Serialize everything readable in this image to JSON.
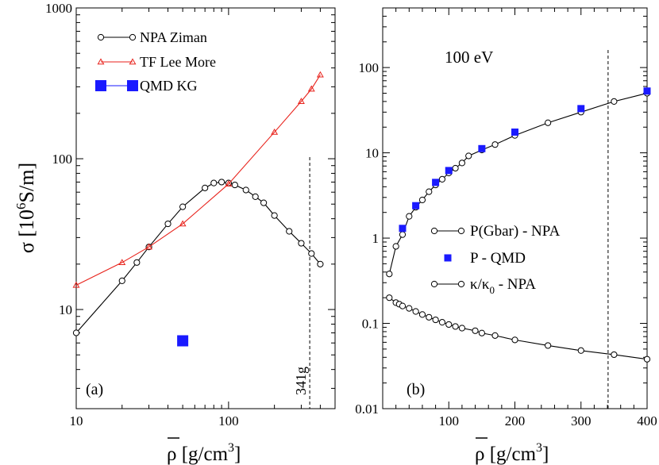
{
  "colors": {
    "npa": "#000000",
    "tf": "#e8221b",
    "qmd": "#1a1aff"
  },
  "chart_data": [
    {
      "type": "line",
      "panel_label": "(a)",
      "xscale": "log",
      "yscale": "log",
      "xlim": [
        10,
        500
      ],
      "ylim": [
        2.2,
        1000
      ],
      "x_ticks": [
        "10",
        "100"
      ],
      "y_ticks": [
        "10",
        "100",
        "1000"
      ],
      "ylabel": "σ [10⁶S/m]",
      "ylabel_base": "σ [10",
      "ylabel_sup": "6",
      "ylabel_tail": "S/m]",
      "xlabel_base": "ρ [g/cm",
      "xlabel_sup": "3",
      "xlabel_tail": "]",
      "xlabel": "ρ̄ [g/cm³]",
      "legend_position": "top-left",
      "series": [
        {
          "name": "NPA Ziman",
          "marker": "circle",
          "color": "#000000",
          "x": [
            10,
            20,
            25,
            30,
            40,
            50,
            70,
            80,
            90,
            100,
            110,
            130,
            150,
            170,
            200,
            250,
            300,
            350,
            400
          ],
          "y": [
            7,
            15.5,
            20.5,
            26,
            37,
            48,
            64,
            69,
            70,
            69,
            67,
            62,
            56,
            51,
            42,
            33,
            27.5,
            23.5,
            20
          ]
        },
        {
          "name": "TF  Lee More",
          "marker": "triangle",
          "color": "#e8221b",
          "x": [
            10,
            20,
            30,
            50,
            100,
            200,
            300,
            350,
            400
          ],
          "y": [
            14.5,
            20.5,
            26,
            37,
            68,
            150,
            240,
            290,
            360
          ]
        },
        {
          "name": "QMD KG",
          "marker": "square",
          "color": "#1a1aff",
          "x": [
            50
          ],
          "y": [
            6.2
          ]
        }
      ],
      "annotations": [
        {
          "text": "341g",
          "x": 341,
          "style": "dashed-vertical-line"
        }
      ]
    },
    {
      "type": "line",
      "panel_label": "(b)",
      "title": "100 eV",
      "xscale": "linear",
      "yscale": "log",
      "xlim": [
        0,
        400
      ],
      "ylim": [
        0.01,
        500
      ],
      "x_ticks": [
        "100",
        "200",
        "300",
        "400"
      ],
      "y_ticks": [
        "0.01",
        "0.1",
        "1",
        "10",
        "100"
      ],
      "xlabel_base": "ρ [g/cm",
      "xlabel_sup": "3",
      "xlabel_tail": "]",
      "xlabel": "ρ̄ [g/cm³]",
      "legend_position": "center-right",
      "series": [
        {
          "name": "P(Gbar) - NPA",
          "marker": "circle",
          "color": "#000000",
          "x": [
            10,
            20,
            30,
            40,
            50,
            60,
            70,
            80,
            90,
            100,
            110,
            120,
            130,
            150,
            170,
            200,
            250,
            300,
            350,
            400
          ],
          "y": [
            0.38,
            0.8,
            1.1,
            1.8,
            2.3,
            2.8,
            3.5,
            4.2,
            4.9,
            5.8,
            6.6,
            7.6,
            9.2,
            10.8,
            12.5,
            16,
            22.5,
            30,
            40,
            50
          ]
        },
        {
          "name": "P - QMD",
          "marker": "square",
          "color": "#1a1aff",
          "x": [
            30,
            50,
            80,
            100,
            150,
            200,
            300,
            400
          ],
          "y": [
            1.3,
            2.4,
            4.5,
            6.2,
            11.2,
            17.5,
            33,
            53
          ]
        },
        {
          "name": "κ/κ₀  -  NPA",
          "legend_base": "κ/κ",
          "legend_sub": "0",
          "legend_tail": "  -  NPA",
          "marker": "circle",
          "color": "#000000",
          "x": [
            10,
            20,
            25,
            30,
            40,
            50,
            60,
            70,
            80,
            90,
            100,
            110,
            120,
            140,
            150,
            170,
            200,
            250,
            300,
            350,
            400
          ],
          "y": [
            0.2,
            0.175,
            0.168,
            0.16,
            0.15,
            0.138,
            0.127,
            0.118,
            0.11,
            0.103,
            0.097,
            0.092,
            0.088,
            0.082,
            0.077,
            0.072,
            0.064,
            0.055,
            0.048,
            0.043,
            0.038
          ]
        }
      ],
      "annotations": [
        {
          "x": 341,
          "style": "dashed-vertical-line"
        }
      ]
    }
  ]
}
